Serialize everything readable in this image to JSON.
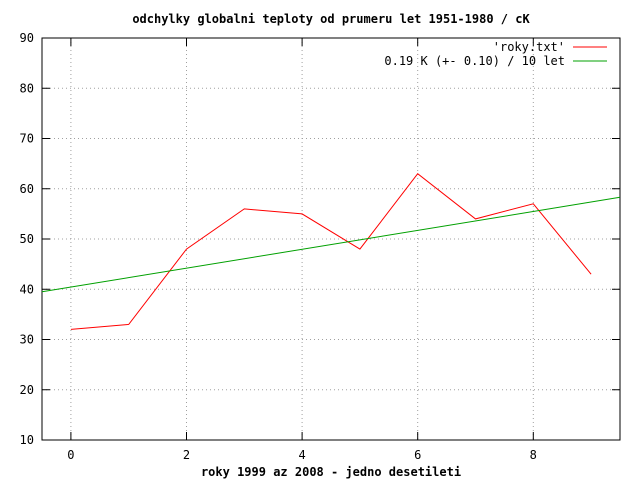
{
  "chart_data": {
    "type": "line",
    "title": "odchylky globalni teploty od prumeru let 1951-1980 / cK",
    "xlabel": "roky 1999 az 2008 - jedno desetileti",
    "ylabel": "",
    "xlim": [
      -0.5,
      9.5
    ],
    "ylim": [
      10,
      90
    ],
    "x_ticks": [
      0,
      2,
      4,
      6,
      8
    ],
    "y_ticks": [
      10,
      20,
      30,
      40,
      50,
      60,
      70,
      80,
      90
    ],
    "grid": true,
    "legend_position": "top-right",
    "series": [
      {
        "name": "'roky.txt'",
        "color": "#ff0000",
        "x": [
          0,
          1,
          2,
          3,
          4,
          5,
          6,
          7,
          8,
          9
        ],
        "values": [
          32,
          33,
          48,
          56,
          55,
          48,
          63,
          54,
          57,
          43
        ]
      },
      {
        "name": "0.19 K (+- 0.10) / 10 let",
        "color": "#00a000",
        "x": [
          -0.5,
          9.5
        ],
        "values": [
          39.5,
          58.3
        ]
      }
    ]
  }
}
